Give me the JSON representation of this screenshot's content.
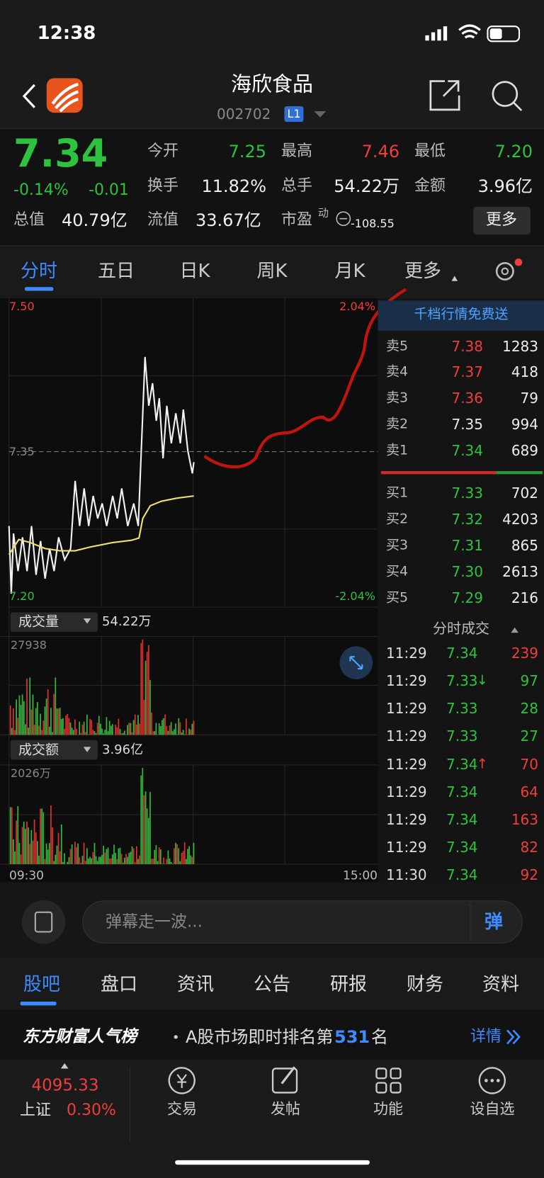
{
  "status_bar": {
    "time": "12:38"
  },
  "header": {
    "title": "海欣食品",
    "code": "002702",
    "badge": "L1"
  },
  "quote": {
    "price": "7.34",
    "change_pct": "-0.14%",
    "change": "-0.01",
    "fields": [
      {
        "label": "今开",
        "value": "7.25",
        "color": "green"
      },
      {
        "label": "最高",
        "value": "7.46",
        "color": "red"
      },
      {
        "label": "最低",
        "value": "7.20",
        "color": "green"
      },
      {
        "label": "换手",
        "value": "11.82%"
      },
      {
        "label": "总手",
        "value": "54.22万"
      },
      {
        "label": "金额",
        "value": "3.96亿"
      },
      {
        "label": "总值",
        "value": "40.79亿"
      },
      {
        "label": "流值",
        "value": "33.67亿"
      },
      {
        "label": "市盈",
        "superscript": "动",
        "value": "-108.55"
      }
    ],
    "more_button": "更多"
  },
  "tabs": [
    "分时",
    "五日",
    "日K",
    "周K",
    "月K",
    "更多"
  ],
  "chart": {
    "price_top": "7.50",
    "price_mid": "7.35",
    "price_bottom": "7.20",
    "pct_top": "2.04%",
    "pct_bottom": "-2.04%",
    "volume_label": "成交量",
    "volume_total": "54.22万",
    "volume_max": "27938",
    "amount_label": "成交额",
    "amount_total": "3.96亿",
    "amount_max": "2026万",
    "time_start": "09:30",
    "time_end": "15:00"
  },
  "orderbook": {
    "banner": "千档行情免费送",
    "asks": [
      {
        "label": "卖5",
        "price": "7.38",
        "volume": "1283",
        "color": "red"
      },
      {
        "label": "卖4",
        "price": "7.37",
        "volume": "418",
        "color": "red"
      },
      {
        "label": "卖3",
        "price": "7.36",
        "volume": "79",
        "color": "red"
      },
      {
        "label": "卖2",
        "price": "7.35",
        "volume": "994",
        "color": "white"
      },
      {
        "label": "卖1",
        "price": "7.34",
        "volume": "689",
        "color": "green"
      }
    ],
    "bids": [
      {
        "label": "买1",
        "price": "7.33",
        "volume": "702",
        "color": "green"
      },
      {
        "label": "买2",
        "price": "7.32",
        "volume": "4203",
        "color": "green"
      },
      {
        "label": "买3",
        "price": "7.31",
        "volume": "865",
        "color": "green"
      },
      {
        "label": "买4",
        "price": "7.30",
        "volume": "2613",
        "color": "green"
      },
      {
        "label": "买5",
        "price": "7.29",
        "volume": "216",
        "color": "green"
      }
    ]
  },
  "trades": {
    "title": "分时成交",
    "price_color": "green",
    "rows": [
      {
        "time": "11:29",
        "price": "7.34",
        "volume": "239",
        "volume_color": "red"
      },
      {
        "time": "11:29",
        "price": "7.33",
        "arrow": "↓",
        "volume": "97",
        "volume_color": "green"
      },
      {
        "time": "11:29",
        "price": "7.33",
        "volume": "28",
        "volume_color": "green"
      },
      {
        "time": "11:29",
        "price": "7.33",
        "volume": "27",
        "volume_color": "green"
      },
      {
        "time": "11:29",
        "price": "7.34",
        "arrow": "↑",
        "volume": "70",
        "volume_color": "red"
      },
      {
        "time": "11:29",
        "price": "7.34",
        "volume": "64",
        "volume_color": "red"
      },
      {
        "time": "11:29",
        "price": "7.34",
        "volume": "163",
        "volume_color": "red"
      },
      {
        "time": "11:29",
        "price": "7.34",
        "volume": "82",
        "volume_color": "red"
      },
      {
        "time": "11:30",
        "price": "7.34",
        "volume": "92",
        "volume_color": "red"
      }
    ]
  },
  "comment": {
    "placeholder": "弹幕走一波...",
    "button": "弹"
  },
  "bottom_tabs": [
    "股吧",
    "盘口",
    "资讯",
    "公告",
    "研报",
    "财务",
    "资料"
  ],
  "ranking": {
    "brand": "东方财富人气榜",
    "text": "A股市场即时排名第",
    "rank": "531",
    "suffix": "名",
    "link": "详情"
  },
  "nav": {
    "index_value": "4095.33",
    "index_name": "上证",
    "index_pct": "0.30%",
    "items": [
      "交易",
      "发帖",
      "功能",
      "设自选"
    ]
  }
}
